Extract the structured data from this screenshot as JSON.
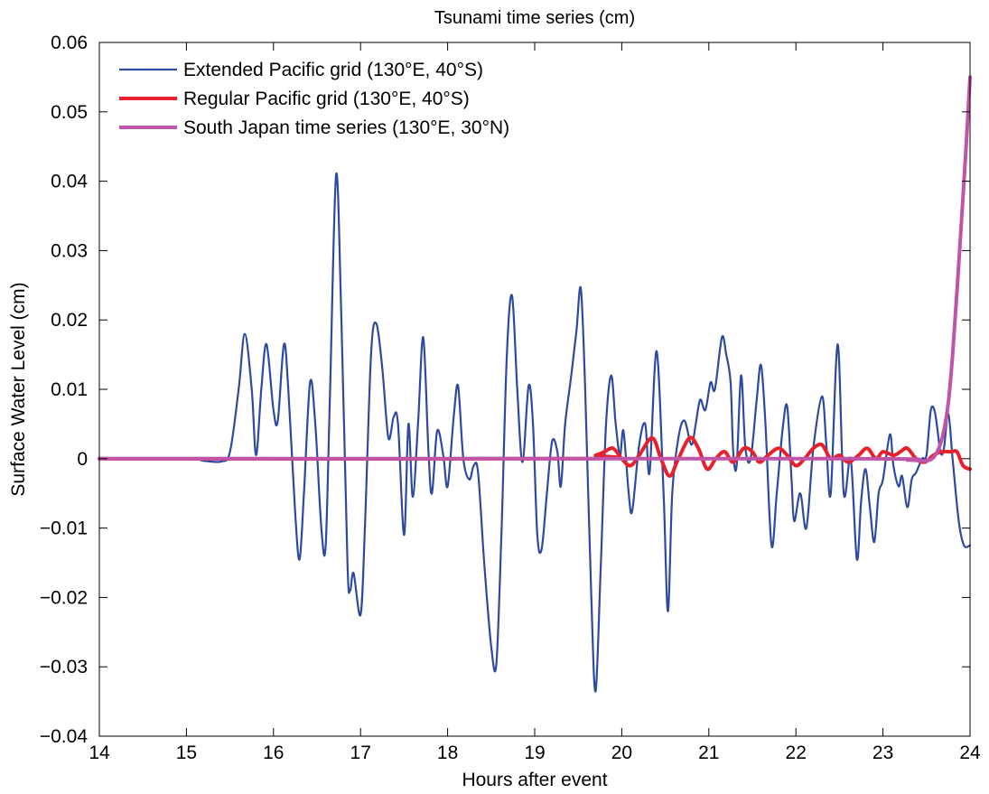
{
  "chart_data": {
    "type": "line",
    "title": "Tsunami time series (cm)",
    "xlabel": "Hours after event",
    "ylabel": "Surface Water Level (cm)",
    "xlim": [
      14,
      24
    ],
    "ylim": [
      -0.04,
      0.06
    ],
    "xticks": [
      14,
      15,
      16,
      17,
      18,
      19,
      20,
      21,
      22,
      23,
      24
    ],
    "yticks": [
      -0.04,
      -0.03,
      -0.02,
      -0.01,
      0,
      0.01,
      0.02,
      0.03,
      0.04,
      0.05,
      0.06
    ],
    "xtick_labels": [
      "14",
      "15",
      "16",
      "17",
      "18",
      "19",
      "20",
      "21",
      "22",
      "23",
      "24"
    ],
    "ytick_labels": [
      "−0.04",
      "−0.03",
      "−0.02",
      "−0.01",
      "0",
      "0.01",
      "0.02",
      "0.03",
      "0.04",
      "0.05",
      "0.06"
    ],
    "grid": false,
    "legend_position": "top-left",
    "series": [
      {
        "name": "Extended Pacific grid (130°E, 40°S)",
        "color": "#2E4A9E",
        "points": [
          [
            14,
            0
          ],
          [
            15,
            0
          ],
          [
            15.2,
            -0.0003
          ],
          [
            15.4,
            -0.0004
          ],
          [
            15.5,
            0.001
          ],
          [
            15.6,
            0.01
          ],
          [
            15.67,
            0.018
          ],
          [
            15.75,
            0.01
          ],
          [
            15.8,
            0.0005
          ],
          [
            15.86,
            0.01
          ],
          [
            15.92,
            0.0165
          ],
          [
            16,
            0.007
          ],
          [
            16.05,
            0.0055
          ],
          [
            16.12,
            0.0165
          ],
          [
            16.17,
            0.01
          ],
          [
            16.25,
            -0.008
          ],
          [
            16.3,
            -0.0145
          ],
          [
            16.35,
            -0.005
          ],
          [
            16.42,
            0.011
          ],
          [
            16.48,
            0.005
          ],
          [
            16.55,
            -0.01
          ],
          [
            16.6,
            -0.0125
          ],
          [
            16.65,
            0.01
          ],
          [
            16.72,
            0.041
          ],
          [
            16.78,
            0.02
          ],
          [
            16.85,
            -0.015
          ],
          [
            16.88,
            -0.019
          ],
          [
            16.92,
            -0.0165
          ],
          [
            17,
            -0.0225
          ],
          [
            17.05,
            -0.01
          ],
          [
            17.12,
            0.015
          ],
          [
            17.18,
            0.0195
          ],
          [
            17.25,
            0.013
          ],
          [
            17.32,
            0.003
          ],
          [
            17.38,
            0.006
          ],
          [
            17.43,
            0.005
          ],
          [
            17.5,
            -0.011
          ],
          [
            17.55,
            0.005
          ],
          [
            17.6,
            -0.0055
          ],
          [
            17.66,
            0.005
          ],
          [
            17.72,
            0.0175
          ],
          [
            17.78,
            0.001
          ],
          [
            17.82,
            -0.005
          ],
          [
            17.88,
            0.004
          ],
          [
            17.95,
            0.0005
          ],
          [
            18,
            -0.004
          ],
          [
            18.07,
            0.006
          ],
          [
            18.12,
            0.0105
          ],
          [
            18.18,
            0
          ],
          [
            18.25,
            -0.003
          ],
          [
            18.3,
            -0.001
          ],
          [
            18.35,
            -0.002
          ],
          [
            18.42,
            -0.015
          ],
          [
            18.5,
            -0.027
          ],
          [
            18.56,
            -0.0295
          ],
          [
            18.62,
            -0.01
          ],
          [
            18.68,
            0.015
          ],
          [
            18.74,
            0.0235
          ],
          [
            18.8,
            0.01
          ],
          [
            18.86,
            -0.0005
          ],
          [
            18.93,
            0.0105
          ],
          [
            18.98,
            0.005
          ],
          [
            19.03,
            -0.011
          ],
          [
            19.08,
            -0.013
          ],
          [
            19.14,
            -0.005
          ],
          [
            19.2,
            0.0025
          ],
          [
            19.26,
            0.001
          ],
          [
            19.3,
            -0.004
          ],
          [
            19.35,
            0.005
          ],
          [
            19.42,
            0.012
          ],
          [
            19.48,
            0.0185
          ],
          [
            19.53,
            0.0245
          ],
          [
            19.58,
            0.01
          ],
          [
            19.65,
            -0.02
          ],
          [
            19.7,
            -0.0335
          ],
          [
            19.76,
            -0.015
          ],
          [
            19.82,
            0.005
          ],
          [
            19.88,
            0.012
          ],
          [
            19.93,
            0.005
          ],
          [
            19.98,
            0.0005
          ],
          [
            20.02,
            0.004
          ],
          [
            20.08,
            -0.005
          ],
          [
            20.12,
            -0.0075
          ],
          [
            20.2,
            0.002
          ],
          [
            20.27,
            0.005
          ],
          [
            20.32,
            -0.002
          ],
          [
            20.4,
            0.0155
          ],
          [
            20.48,
            -0.005
          ],
          [
            20.53,
            -0.022
          ],
          [
            20.58,
            -0.005
          ],
          [
            20.65,
            0.003
          ],
          [
            20.72,
            0.0055
          ],
          [
            20.8,
            0.002
          ],
          [
            20.85,
            0.005
          ],
          [
            20.9,
            0.0085
          ],
          [
            20.96,
            0.007
          ],
          [
            21.02,
            0.011
          ],
          [
            21.07,
            0.01
          ],
          [
            21.15,
            0.0175
          ],
          [
            21.2,
            0.015
          ],
          [
            21.25,
            0.011
          ],
          [
            21.28,
            0.001
          ],
          [
            21.32,
            -0.001
          ],
          [
            21.37,
            0.012
          ],
          [
            21.42,
            0.0015
          ],
          [
            21.48,
            0
          ],
          [
            21.55,
            0.0085
          ],
          [
            21.6,
            0.0135
          ],
          [
            21.65,
            0.005
          ],
          [
            21.72,
            -0.0125
          ],
          [
            21.78,
            -0.005
          ],
          [
            21.85,
            0.0045
          ],
          [
            21.9,
            0.0075
          ],
          [
            21.95,
            -0.003
          ],
          [
            21.98,
            -0.009
          ],
          [
            22.05,
            -0.005
          ],
          [
            22.12,
            -0.01
          ],
          [
            22.2,
            0.0015
          ],
          [
            22.3,
            0.009
          ],
          [
            22.35,
            0.002
          ],
          [
            22.4,
            -0.005
          ],
          [
            22.48,
            0.0165
          ],
          [
            22.55,
            -0.005
          ],
          [
            22.63,
            0
          ],
          [
            22.7,
            -0.0145
          ],
          [
            22.75,
            -0.006
          ],
          [
            22.8,
            -0.0015
          ],
          [
            22.85,
            -0.007
          ],
          [
            22.9,
            -0.012
          ],
          [
            22.95,
            -0.005
          ],
          [
            23,
            -0.003
          ],
          [
            23.08,
            0.0035
          ],
          [
            23.12,
            -0.001
          ],
          [
            23.18,
            -0.004
          ],
          [
            23.22,
            -0.0025
          ],
          [
            23.28,
            -0.007
          ],
          [
            23.33,
            -0.003
          ],
          [
            23.38,
            -0.002
          ],
          [
            23.45,
            0
          ],
          [
            23.5,
            0.0005
          ],
          [
            23.55,
            0.007
          ],
          [
            23.6,
            0.0065
          ],
          [
            23.66,
            0.001
          ],
          [
            23.7,
            0.0015
          ],
          [
            23.75,
            0.0065
          ],
          [
            23.8,
            0
          ],
          [
            23.87,
            -0.009
          ],
          [
            23.93,
            -0.0125
          ],
          [
            24,
            -0.0125
          ]
        ]
      },
      {
        "name": "Regular Pacific grid (130°E, 40°S)",
        "color": "#E8202A",
        "points": [
          [
            14,
            0
          ],
          [
            19.5,
            0
          ],
          [
            19.7,
            0.0005
          ],
          [
            19.8,
            0.001
          ],
          [
            19.9,
            0.0015
          ],
          [
            20,
            0
          ],
          [
            20.1,
            -0.001
          ],
          [
            20.2,
            0.0005
          ],
          [
            20.35,
            0.003
          ],
          [
            20.45,
            0
          ],
          [
            20.55,
            -0.0025
          ],
          [
            20.65,
            0
          ],
          [
            20.78,
            0.003
          ],
          [
            20.88,
            0.0015
          ],
          [
            20.98,
            -0.0015
          ],
          [
            21.08,
            0
          ],
          [
            21.18,
            0.001
          ],
          [
            21.28,
            -0.0005
          ],
          [
            21.4,
            0.0015
          ],
          [
            21.5,
            0.001
          ],
          [
            21.58,
            -0.0005
          ],
          [
            21.68,
            0.0005
          ],
          [
            21.8,
            0.0015
          ],
          [
            21.9,
            0.0005
          ],
          [
            22,
            -0.001
          ],
          [
            22.1,
            0
          ],
          [
            22.2,
            0.0015
          ],
          [
            22.3,
            0.002
          ],
          [
            22.4,
            0
          ],
          [
            22.5,
            0.0005
          ],
          [
            22.6,
            -0.0005
          ],
          [
            22.72,
            0.0005
          ],
          [
            22.82,
            0.0015
          ],
          [
            22.92,
            0
          ],
          [
            23,
            0.001
          ],
          [
            23.12,
            0.0005
          ],
          [
            23.2,
            0.001
          ],
          [
            23.28,
            0.0015
          ],
          [
            23.38,
            0
          ],
          [
            23.48,
            -0.0005
          ],
          [
            23.58,
            0.0005
          ],
          [
            23.68,
            0.001
          ],
          [
            23.78,
            0.001
          ],
          [
            23.85,
            0.001
          ],
          [
            23.92,
            -0.001
          ],
          [
            24,
            -0.0015
          ]
        ]
      },
      {
        "name": "South Japan time series (130°E, 30°N)",
        "color": "#C054A8",
        "points": [
          [
            14,
            0
          ],
          [
            22.5,
            0
          ],
          [
            23.3,
            -0.0002
          ],
          [
            23.5,
            -0.0003
          ],
          [
            23.6,
            0.0005
          ],
          [
            23.68,
            0.003
          ],
          [
            23.75,
            0.008
          ],
          [
            23.8,
            0.015
          ],
          [
            23.85,
            0.024
          ],
          [
            23.9,
            0.034
          ],
          [
            23.95,
            0.044
          ],
          [
            24,
            0.055
          ]
        ]
      }
    ]
  }
}
